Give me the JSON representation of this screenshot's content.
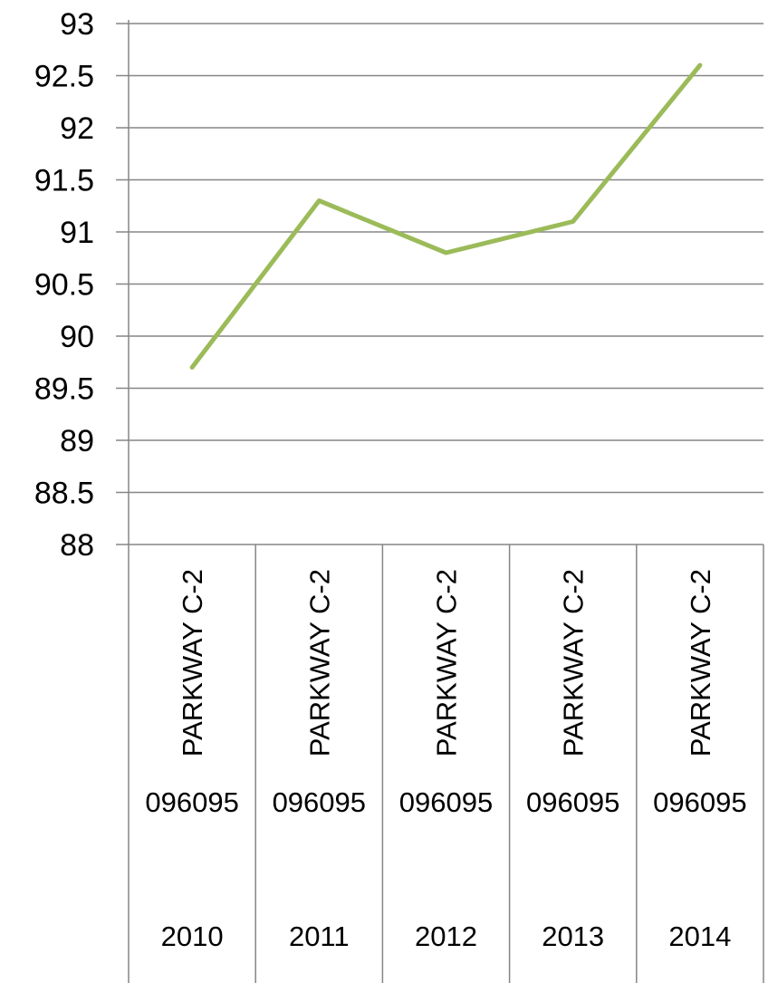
{
  "chart_data": {
    "type": "line",
    "title": "",
    "xlabel": "",
    "ylabel": "",
    "ylim": [
      88,
      93
    ],
    "y_ticks": [
      "88",
      "88.5",
      "89",
      "89.5",
      "90",
      "90.5",
      "91",
      "91.5",
      "92",
      "92.5",
      "93"
    ],
    "grid": true,
    "legend": "none",
    "categories": [
      {
        "label": "PARKWAY C-2",
        "code": "096095",
        "year": "2010"
      },
      {
        "label": "PARKWAY C-2",
        "code": "096095",
        "year": "2011"
      },
      {
        "label": "PARKWAY C-2",
        "code": "096095",
        "year": "2012"
      },
      {
        "label": "PARKWAY C-2",
        "code": "096095",
        "year": "2013"
      },
      {
        "label": "PARKWAY C-2",
        "code": "096095",
        "year": "2014"
      }
    ],
    "series": [
      {
        "values": [
          89.7,
          91.3,
          90.8,
          91.1,
          92.6
        ],
        "color": "#9bbb59"
      }
    ],
    "colors": {
      "line": "#9bbb59",
      "grid": "#868686",
      "axis": "#868686"
    }
  }
}
